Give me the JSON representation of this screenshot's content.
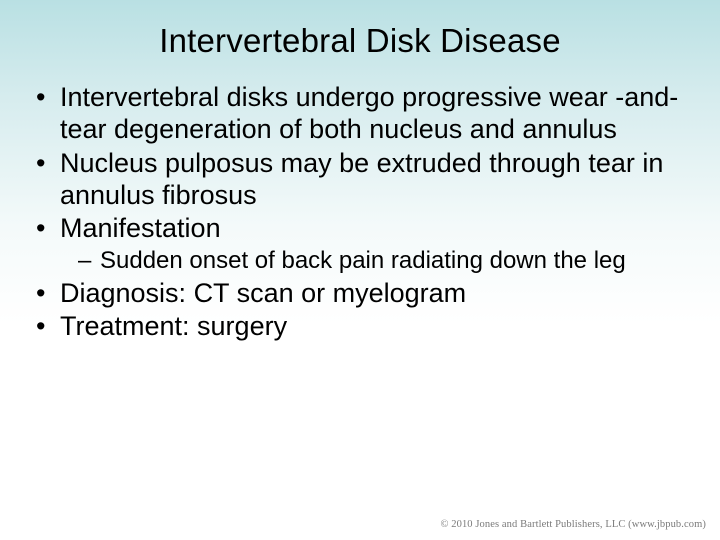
{
  "slide": {
    "background_gradient": [
      "#b9e0e3",
      "#d6ecee",
      "#f4fafa",
      "#ffffff"
    ],
    "title": "Intervertebral Disk Disease",
    "title_fontsize": 33,
    "body_fontsize": 27,
    "sub_fontsize": 24,
    "text_color": "#000000",
    "bullets": [
      {
        "text": "Intervertebral disks undergo progressive wear -and-tear degeneration of both nucleus and annulus"
      },
      {
        "text": "Nucleus pulposus may be extruded through tear in annulus fibrosus"
      },
      {
        "text": "Manifestation",
        "children": [
          {
            "text": "Sudden onset of back pain radiating down the leg"
          }
        ]
      },
      {
        "text": "Diagnosis: CT scan or myelogram"
      },
      {
        "text": "Treatment: surgery"
      }
    ],
    "footer": "© 2010 Jones and Bartlett Publishers, LLC (www.jbpub.com)",
    "footer_color": "#7a7a7a",
    "footer_fontsize": 10.5
  }
}
